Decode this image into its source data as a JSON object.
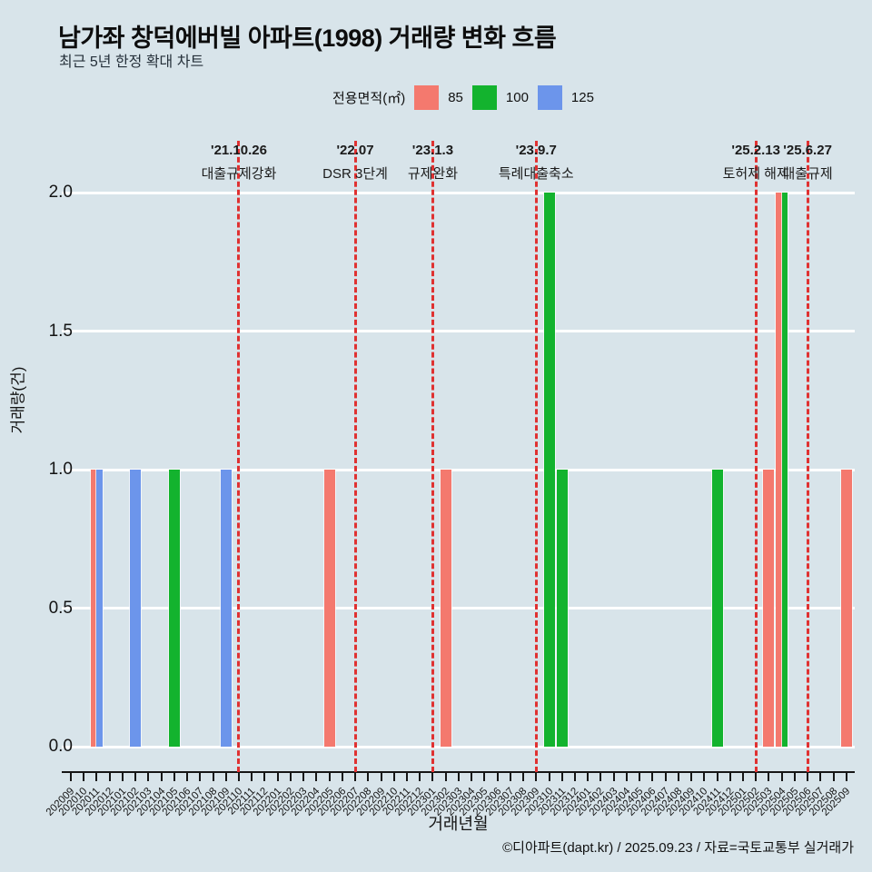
{
  "title": "남가좌 창덕에버빌 아파트(1998) 거래량 변화 흐름",
  "subtitle": "최근 5년 한정 확대 차트",
  "legend": {
    "title": "전용면적(㎡)",
    "items": [
      {
        "label": "85",
        "color": "#f4796e"
      },
      {
        "label": "100",
        "color": "#13b32e"
      },
      {
        "label": "125",
        "color": "#6c95eb"
      }
    ]
  },
  "chart_data": {
    "type": "bar",
    "title": "남가좌 창덕에버빌 아파트(1998) 거래량 변화 흐름",
    "xlabel": "거래년월",
    "ylabel": "거래량(건)",
    "ylim": [
      0,
      2.0
    ],
    "yticks": [
      "0.0",
      "0.5",
      "1.0",
      "1.5",
      "2.0"
    ],
    "grid": true,
    "legend_position": "top",
    "categories": [
      "202009",
      "202010",
      "202011",
      "202012",
      "202101",
      "202102",
      "202103",
      "202104",
      "202105",
      "202106",
      "202107",
      "202108",
      "202109",
      "202110",
      "202111",
      "202112",
      "202201",
      "202202",
      "202203",
      "202204",
      "202205",
      "202206",
      "202207",
      "202208",
      "202209",
      "202210",
      "202211",
      "202212",
      "202301",
      "202302",
      "202303",
      "202304",
      "202305",
      "202306",
      "202307",
      "202308",
      "202309",
      "202310",
      "202311",
      "202312",
      "202401",
      "202402",
      "202403",
      "202404",
      "202405",
      "202406",
      "202407",
      "202408",
      "202409",
      "202410",
      "202411",
      "202412",
      "202501",
      "202502",
      "202503",
      "202504",
      "202505",
      "202506",
      "202507",
      "202508",
      "202509"
    ],
    "series": [
      {
        "name": "85",
        "color": "#f4796e",
        "points": {
          "202011": 1,
          "202205": 1,
          "202302": 1,
          "202503": 1,
          "202504": 2,
          "202509": 1
        }
      },
      {
        "name": "100",
        "color": "#13b32e",
        "points": {
          "202105": 1,
          "202310": 2,
          "202311": 1,
          "202411": 1,
          "202504": 2
        }
      },
      {
        "name": "125",
        "color": "#6c95eb",
        "points": {
          "202011": 1,
          "202102": 1,
          "202109": 1
        }
      }
    ],
    "annotations": [
      {
        "month": "202110",
        "date": "'21.10.26",
        "label": "대출규제강화"
      },
      {
        "month": "202207",
        "date": "'22.07",
        "label": "DSR 3단계"
      },
      {
        "month": "202301",
        "date": "'23.1.3",
        "label": "규제완화"
      },
      {
        "month": "202309",
        "date": "'23.9.7",
        "label": "특례대출축소"
      },
      {
        "month": "202502",
        "date": "'25.2.13",
        "label": "토허제 해제"
      },
      {
        "month": "202506",
        "date": "'25.6.27",
        "label": "대출규제"
      }
    ],
    "event_line_color": "#e03131"
  },
  "footer": "©디아파트(dapt.kr) / 2025.09.23 / 자료=국토교통부 실거래가"
}
